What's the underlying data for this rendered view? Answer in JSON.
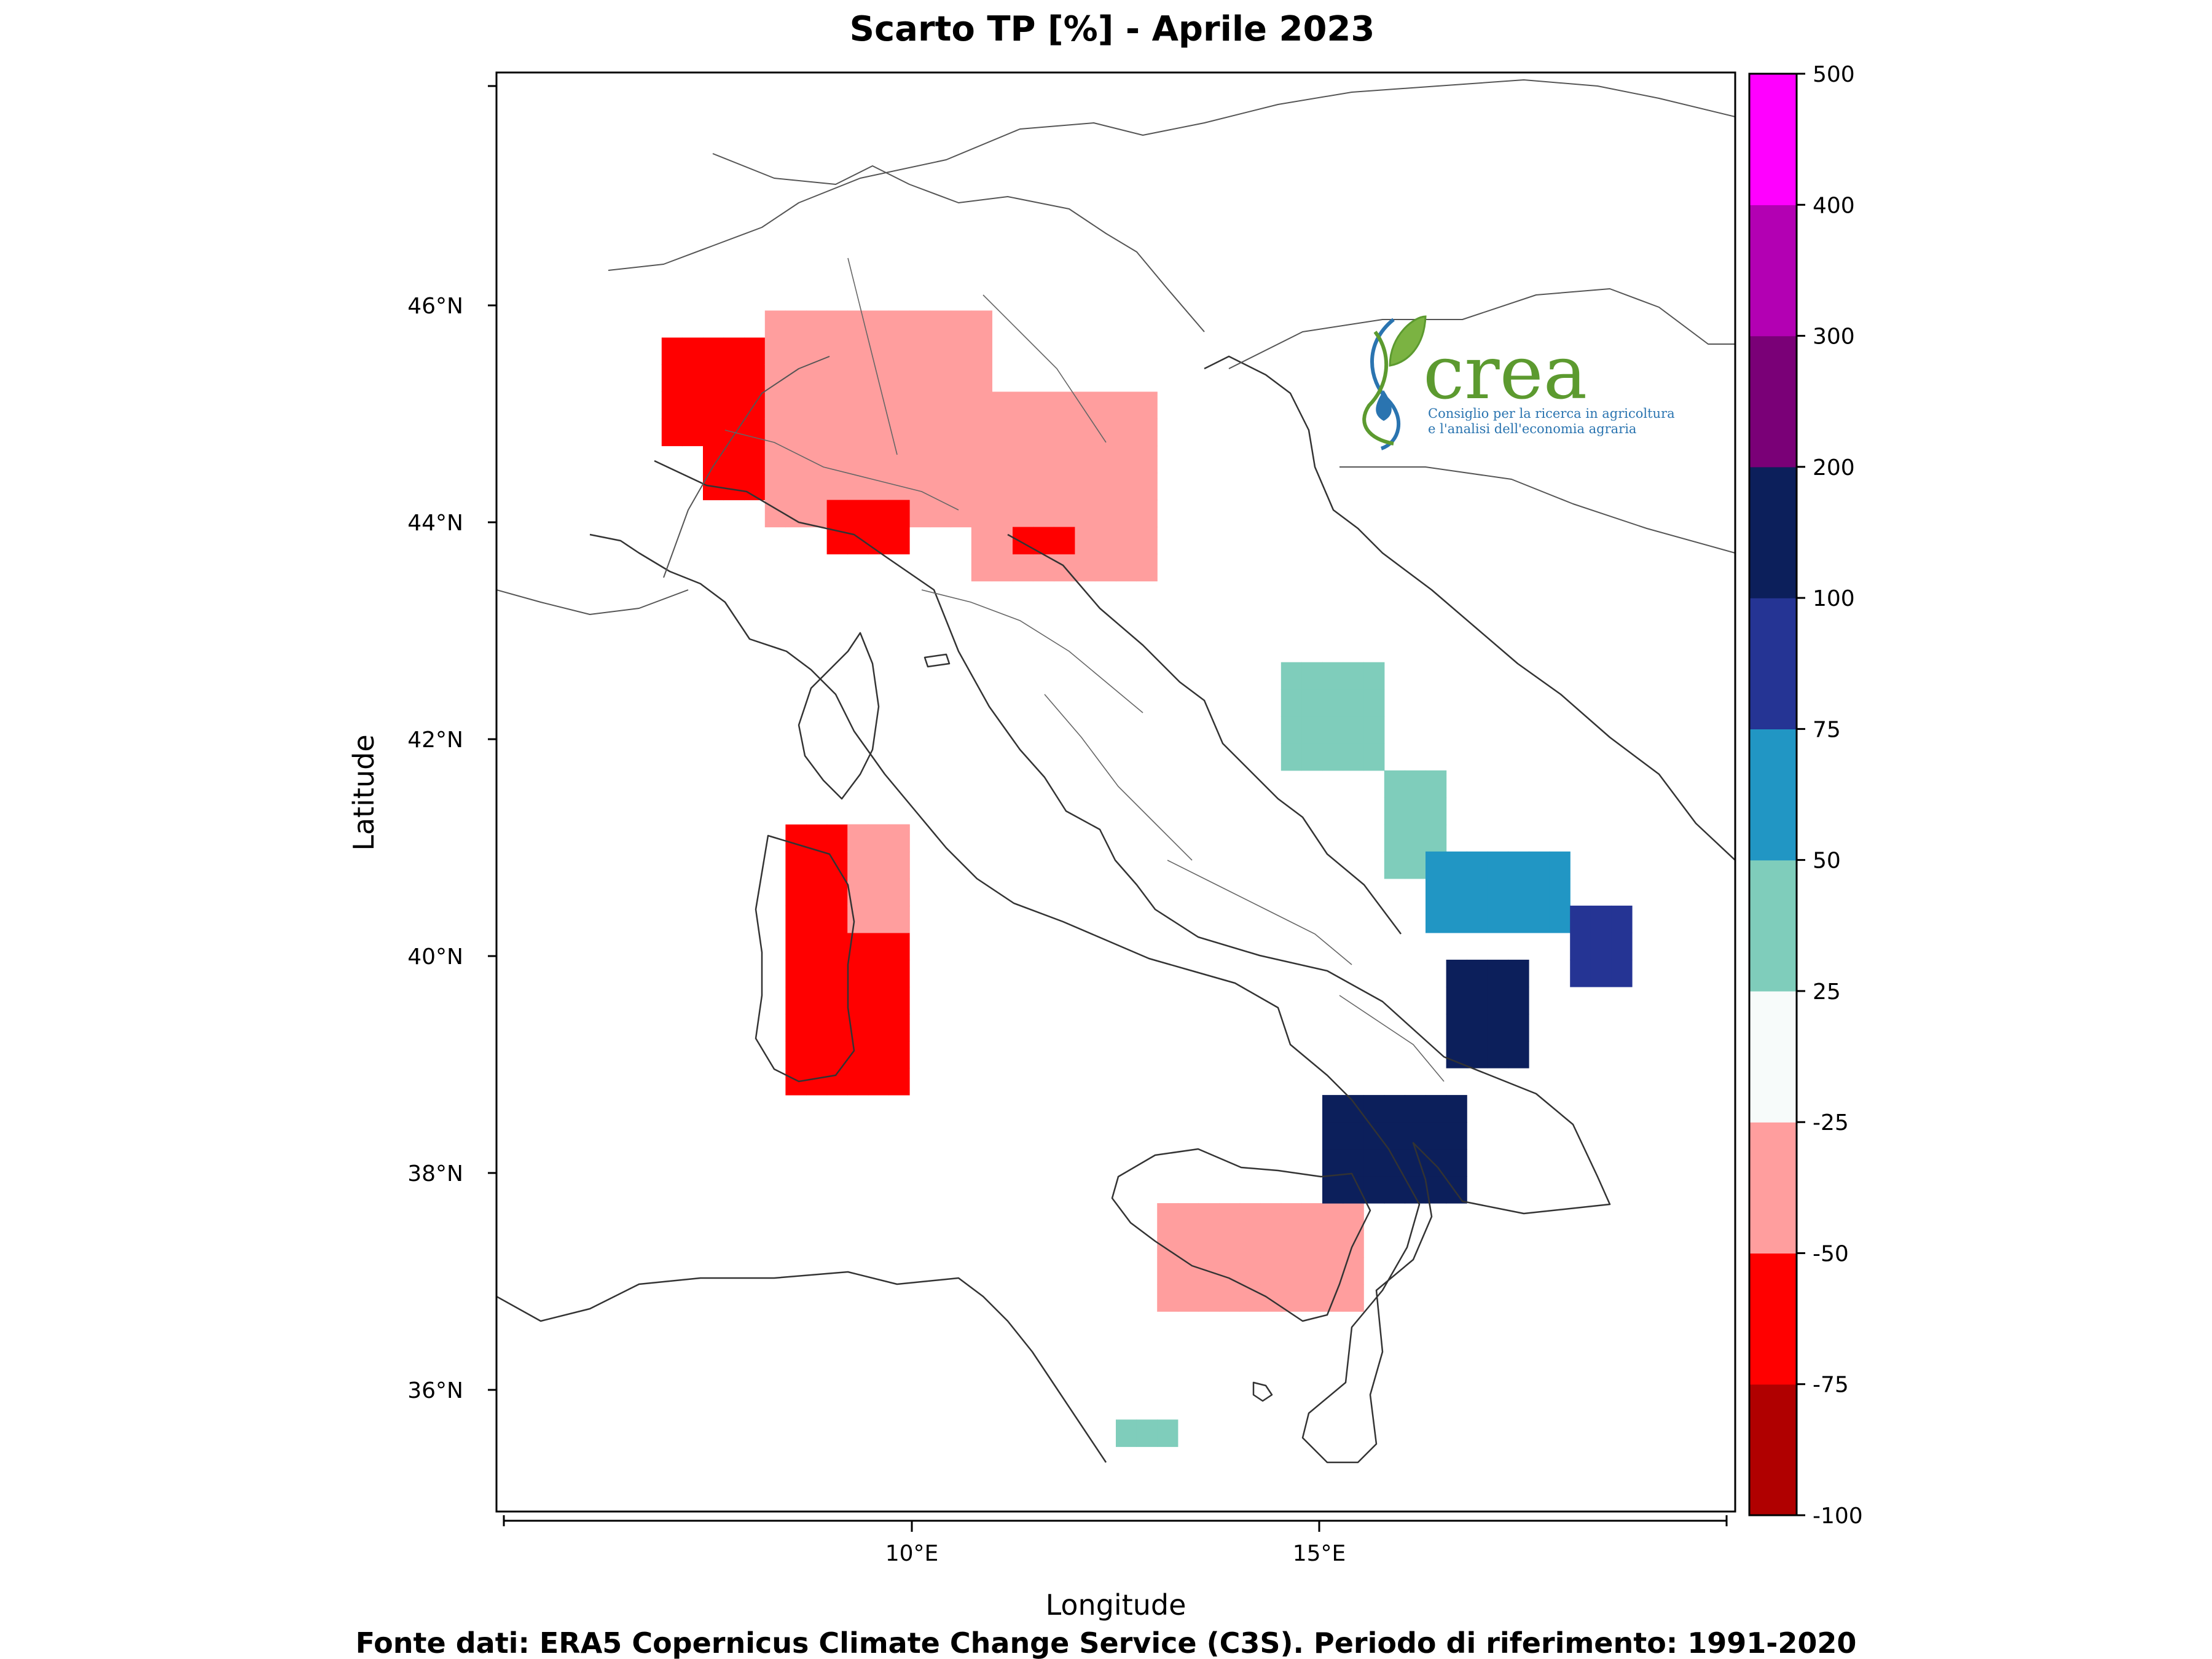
{
  "title": "Scarto TP [%] - Aprile 2023",
  "source_note": "Fonte dati: ERA5 Copernicus Climate Change Service (C3S). Periodo di riferimento: 1991-2020",
  "x_axis": {
    "label": "Longitude",
    "ticks": [
      "10°E",
      "15°E"
    ]
  },
  "y_axis": {
    "label": "Latitude",
    "ticks": [
      "46°N",
      "44°N",
      "42°N",
      "40°N",
      "38°N",
      "36°N"
    ]
  },
  "logo": {
    "name": "crea",
    "line1": "Consiglio per la ricerca in agricoltura",
    "line2": "e l'analisi dell'economia agraria",
    "green": "#5c9a2f",
    "blue": "#2a74b0"
  },
  "colorbar": {
    "tick_labels": [
      "500",
      "400",
      "300",
      "200",
      "100",
      "75",
      "50",
      "25",
      "-25",
      "-50",
      "-75",
      "-100"
    ],
    "bins": [
      {
        "from": -100,
        "to": -75,
        "color": "#b00000"
      },
      {
        "from": -75,
        "to": -50,
        "color": "#ff0000"
      },
      {
        "from": -50,
        "to": -25,
        "color": "#ff9e9e"
      },
      {
        "from": -25,
        "to": 25,
        "color": "#f7fbfa"
      },
      {
        "from": 25,
        "to": 50,
        "color": "#7fcdbb"
      },
      {
        "from": 50,
        "to": 75,
        "color": "#2196c4"
      },
      {
        "from": 75,
        "to": 100,
        "color": "#253494"
      },
      {
        "from": 100,
        "to": 200,
        "color": "#0c1f5b"
      },
      {
        "from": 200,
        "to": 300,
        "color": "#7a0077"
      },
      {
        "from": 300,
        "to": 400,
        "color": "#b300b3"
      },
      {
        "from": 400,
        "to": 500,
        "color": "#ff00ff"
      }
    ]
  },
  "chart_data": {
    "type": "heatmap",
    "title": "Scarto TP [%] - Aprile 2023",
    "xlabel": "Longitude",
    "ylabel": "Latitude",
    "xlim": [
      4.75,
      19.75
    ],
    "ylim": [
      34.9,
      48.2
    ],
    "grid": false,
    "legend": "colorbar-right",
    "cell_size_deg": 0.25,
    "regions": [
      {
        "lon": [
          6.75,
          8.5
        ],
        "lat": [
          44.75,
          45.75
        ],
        "value": -60
      },
      {
        "lon": [
          7.25,
          8.5
        ],
        "lat": [
          44.25,
          45.25
        ],
        "value": -55
      },
      {
        "lon": [
          8.0,
          10.75
        ],
        "lat": [
          44.0,
          46.0
        ],
        "value": -35
      },
      {
        "lon": [
          10.5,
          12.75
        ],
        "lat": [
          43.5,
          45.25
        ],
        "value": -35
      },
      {
        "lon": [
          8.75,
          9.75
        ],
        "lat": [
          43.75,
          44.25
        ],
        "value": -60
      },
      {
        "lon": [
          11.0,
          11.75
        ],
        "lat": [
          43.75,
          44.0
        ],
        "value": -60
      },
      {
        "lon": [
          8.25,
          9.75
        ],
        "lat": [
          38.75,
          41.25
        ],
        "value": -60
      },
      {
        "lon": [
          9.0,
          9.75
        ],
        "lat": [
          40.25,
          41.25
        ],
        "value": -35
      },
      {
        "lon": [
          12.75,
          15.25
        ],
        "lat": [
          36.75,
          37.75
        ],
        "value": -35
      },
      {
        "lon": [
          14.25,
          15.5
        ],
        "lat": [
          41.75,
          42.75
        ],
        "value": 35
      },
      {
        "lon": [
          15.5,
          16.25
        ],
        "lat": [
          40.75,
          41.75
        ],
        "value": 35
      },
      {
        "lon": [
          16.0,
          17.75
        ],
        "lat": [
          40.25,
          41.0
        ],
        "value": 60
      },
      {
        "lon": [
          16.25,
          17.25
        ],
        "lat": [
          39.0,
          40.0
        ],
        "value": 150
      },
      {
        "lon": [
          17.75,
          18.5
        ],
        "lat": [
          39.75,
          40.5
        ],
        "value": 90
      },
      {
        "lon": [
          14.75,
          16.5
        ],
        "lat": [
          37.75,
          38.75
        ],
        "value": 150
      },
      {
        "lon": [
          12.25,
          13.0
        ],
        "lat": [
          35.5,
          35.75
        ],
        "value": 35
      }
    ]
  }
}
